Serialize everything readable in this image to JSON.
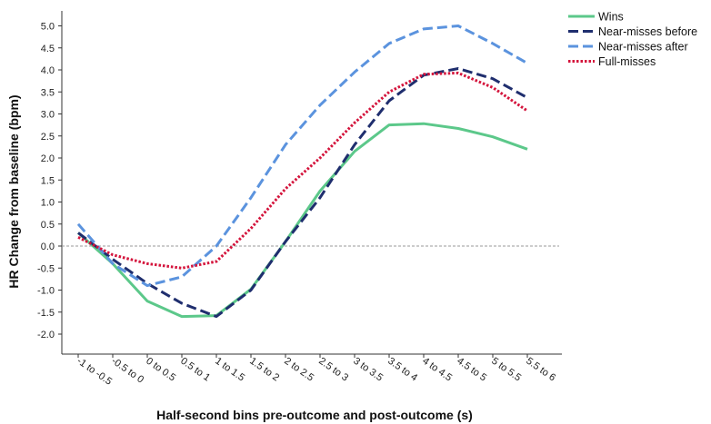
{
  "chart_data": {
    "type": "line",
    "title": "",
    "xlabel": "Half-second bins pre-outcome and post-outcome (s)",
    "ylabel": "HR Change from baseline (bpm)",
    "ylim": [
      -2.0,
      5.0
    ],
    "yticks": [
      "-2.0",
      "-1.5",
      "-1.0",
      "-0.5",
      "0.0",
      "0.5",
      "1.0",
      "1.5",
      "2.0",
      "2.5",
      "3.0",
      "3.5",
      "4.0",
      "4.5",
      "5.0"
    ],
    "categories": [
      "-1 to -0.5",
      "-0.5 to 0",
      "0 to 0.5",
      "0.5 to 1",
      "1 to 1.5",
      "1.5 to 2",
      "2 to 2.5",
      "2.5 to 3",
      "3 to 3.5",
      "3.5 to 4",
      "4 to 4.5",
      "4.5 to 5",
      "5 to 5.5",
      "5.5 to 6"
    ],
    "reference_line": 0.0,
    "grid": false,
    "legend_position": "top-right",
    "series": [
      {
        "name": "Wins",
        "color": "#5cc88a",
        "style": "solid",
        "values": [
          0.3,
          -0.4,
          -1.25,
          -1.6,
          -1.58,
          -0.98,
          0.1,
          1.25,
          2.15,
          2.75,
          2.78,
          2.67,
          2.48,
          2.2
        ]
      },
      {
        "name": "Near-misses before",
        "color": "#1f2e6e",
        "style": "dashed",
        "values": [
          0.3,
          -0.3,
          -0.85,
          -1.3,
          -1.6,
          -1.0,
          0.1,
          1.1,
          2.3,
          3.3,
          3.88,
          4.03,
          3.8,
          3.37
        ]
      },
      {
        "name": "Near-misses after",
        "color": "#5b93de",
        "style": "dashed",
        "values": [
          0.5,
          -0.4,
          -0.9,
          -0.7,
          0.0,
          1.1,
          2.3,
          3.2,
          3.95,
          4.6,
          4.93,
          5.0,
          4.6,
          4.15
        ]
      },
      {
        "name": "Full-misses",
        "color": "#d4143c",
        "style": "dotted",
        "values": [
          0.2,
          -0.2,
          -0.4,
          -0.5,
          -0.35,
          0.4,
          1.3,
          2.0,
          2.8,
          3.5,
          3.9,
          3.93,
          3.6,
          3.07
        ]
      }
    ]
  }
}
